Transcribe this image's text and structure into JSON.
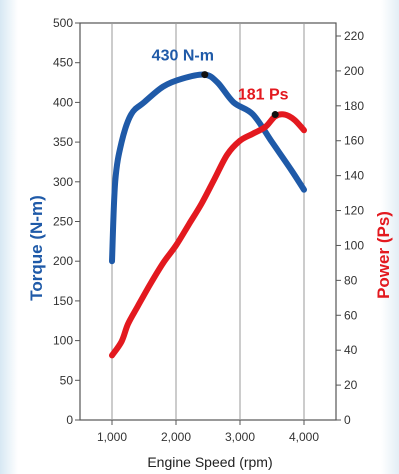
{
  "chart_data": {
    "type": "line",
    "xlabel": "Engine Speed (rpm)",
    "x_ticks": [
      "1,000",
      "2,000",
      "3,000",
      "4,000"
    ],
    "xlim": [
      500,
      4500
    ],
    "y_left": {
      "label": "Torque (N-m)",
      "ticks": [
        "0",
        "50",
        "100",
        "150",
        "200",
        "250",
        "300",
        "350",
        "400",
        "450",
        "500"
      ],
      "ylim": [
        0,
        500
      ],
      "color": "#1f5aa8"
    },
    "y_right": {
      "label": "Power (Ps)",
      "ticks": [
        "0",
        "20",
        "40",
        "60",
        "80",
        "100",
        "120",
        "140",
        "160",
        "180",
        "200",
        "220"
      ],
      "ylim": [
        0,
        220
      ],
      "color": "#e3191f"
    },
    "grid": "vertical",
    "series": [
      {
        "axis": "left",
        "color": "#1f5aa8",
        "points": [
          [
            1000,
            200
          ],
          [
            1050,
            300
          ],
          [
            1150,
            350
          ],
          [
            1300,
            385
          ],
          [
            1500,
            400
          ],
          [
            1800,
            420
          ],
          [
            2100,
            430
          ],
          [
            2450,
            435
          ],
          [
            2650,
            425
          ],
          [
            2900,
            400
          ],
          [
            3200,
            385
          ],
          [
            3500,
            350
          ],
          [
            3800,
            315
          ],
          [
            4000,
            290
          ]
        ]
      },
      {
        "axis": "right",
        "color": "#e3191f",
        "points": [
          [
            1000,
            37
          ],
          [
            1150,
            45
          ],
          [
            1250,
            55
          ],
          [
            1400,
            65
          ],
          [
            1600,
            78
          ],
          [
            1800,
            90
          ],
          [
            2000,
            100
          ],
          [
            2200,
            112
          ],
          [
            2400,
            124
          ],
          [
            2600,
            138
          ],
          [
            2800,
            152
          ],
          [
            3000,
            160
          ],
          [
            3200,
            164
          ],
          [
            3400,
            168
          ],
          [
            3550,
            174
          ],
          [
            3700,
            175
          ],
          [
            3850,
            172
          ],
          [
            4000,
            166
          ]
        ]
      }
    ],
    "annotations": [
      {
        "text": "430 N-m",
        "x": 2450,
        "y": 435,
        "axis": "left",
        "color": "#1f5aa8"
      },
      {
        "text": "181 Ps",
        "x": 3550,
        "y": 175,
        "axis": "right",
        "color": "#e3191f"
      }
    ]
  }
}
